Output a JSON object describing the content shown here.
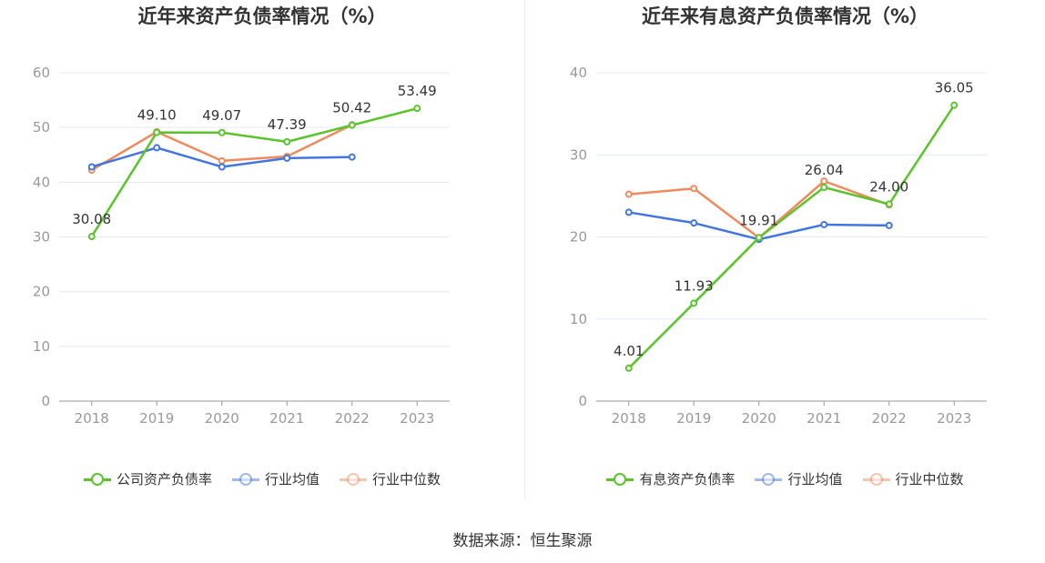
{
  "source_label": "数据来源：恒生聚源",
  "colors": {
    "company": "#5ac52b",
    "avg": "#4275e0",
    "median": "#f08a5d",
    "grid": "#e6e8f2",
    "axis": "#999999",
    "tick": "#999999"
  },
  "charts": [
    {
      "title": "近年来资产负债率情况（%）",
      "legend": [
        "公司资产负债率",
        "行业均值",
        "行业中位数"
      ]
    },
    {
      "title": "近年来有息资产负债率情况（%）",
      "legend": [
        "有息资产负债率",
        "行业均值",
        "行业中位数"
      ]
    }
  ],
  "chart_data": [
    {
      "type": "line",
      "title": "近年来资产负债率情况（%）",
      "x": [
        "2018",
        "2019",
        "2020",
        "2021",
        "2022",
        "2023"
      ],
      "ylim": [
        0,
        60
      ],
      "yticks": [
        0,
        10,
        20,
        30,
        40,
        50,
        60
      ],
      "grid": true,
      "legend_position": "bottom",
      "series": [
        {
          "name": "公司资产负债率",
          "values": [
            30.08,
            49.1,
            49.07,
            47.39,
            50.42,
            53.49
          ],
          "labels": [
            "30.08",
            "49.10",
            "49.07",
            "47.39",
            "50.42",
            "53.49"
          ]
        },
        {
          "name": "行业均值",
          "values": [
            42.8,
            46.3,
            42.8,
            44.4,
            44.6,
            null
          ]
        },
        {
          "name": "行业中位数",
          "values": [
            42.2,
            49.2,
            43.9,
            44.7,
            50.5,
            null
          ]
        }
      ]
    },
    {
      "type": "line",
      "title": "近年来有息资产负债率情况（%）",
      "x": [
        "2018",
        "2019",
        "2020",
        "2021",
        "2022",
        "2023"
      ],
      "ylim": [
        0,
        40
      ],
      "yticks": [
        0,
        10,
        20,
        30,
        40
      ],
      "grid": true,
      "legend_position": "bottom",
      "series": [
        {
          "name": "有息资产负债率",
          "values": [
            4.01,
            11.93,
            19.91,
            26.04,
            24.0,
            36.05
          ],
          "labels": [
            "4.01",
            "11.93",
            "19.91",
            "26.04",
            "24.00",
            "36.05"
          ]
        },
        {
          "name": "行业均值",
          "values": [
            23.0,
            21.7,
            19.7,
            21.5,
            21.4,
            null
          ]
        },
        {
          "name": "行业中位数",
          "values": [
            25.2,
            25.9,
            19.9,
            26.8,
            23.9,
            null
          ]
        }
      ]
    }
  ]
}
